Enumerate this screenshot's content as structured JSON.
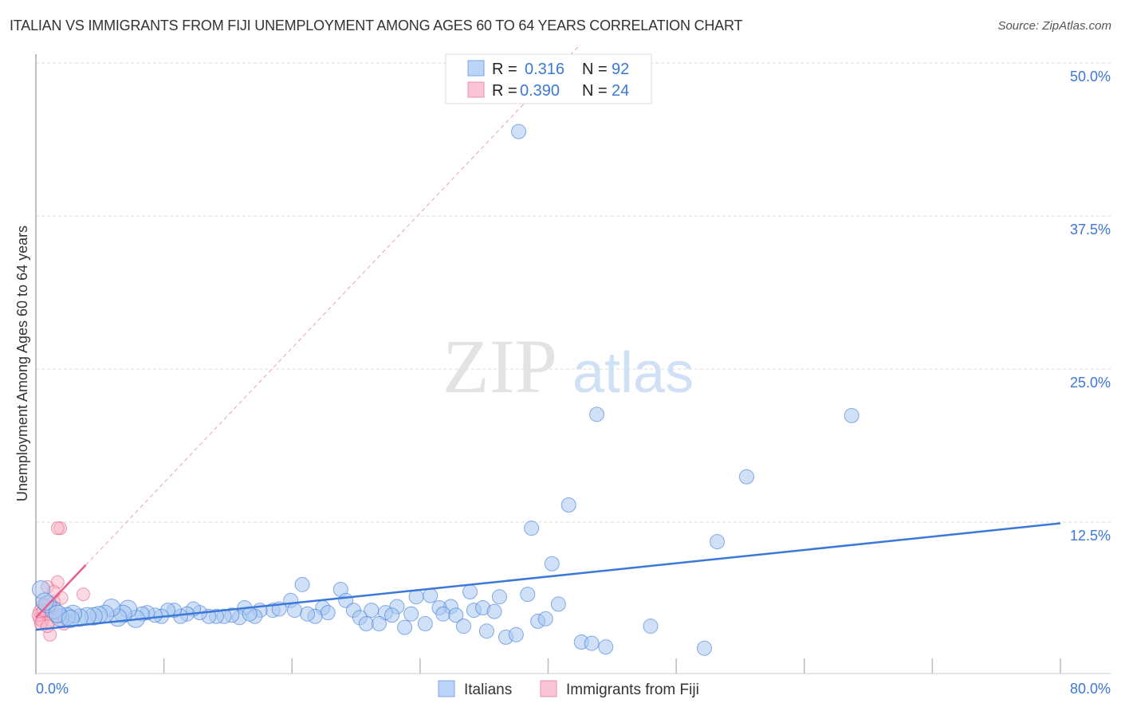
{
  "title": "ITALIAN VS IMMIGRANTS FROM FIJI UNEMPLOYMENT AMONG AGES 60 TO 64 YEARS CORRELATION CHART",
  "source": "Source: ZipAtlas.com",
  "watermark": "ZIPatlas",
  "colors": {
    "blue": "#3b78d8",
    "blue_fill": "#a9c8f0",
    "pink": "#e8608a",
    "pink_fill": "#f7b6c8"
  },
  "chart_data": {
    "type": "scatter",
    "xlabel": "",
    "ylabel": "Unemployment Among Ages 60 to 64 years",
    "xlim": [
      0,
      80
    ],
    "ylim": [
      0,
      50
    ],
    "x_tick_labels": [
      "0.0%",
      "80.0%"
    ],
    "y_ticks": [
      12.5,
      25,
      37.5,
      50
    ],
    "y_tick_labels": [
      "12.5%",
      "25.0%",
      "37.5%",
      "50.0%"
    ],
    "grid": true,
    "legend": {
      "placement": "top-center",
      "entries": [
        {
          "r_label": "R =",
          "r": "0.316",
          "n_label": "N =",
          "n": "92"
        },
        {
          "r_label": "R =",
          "r": "0.390",
          "n_label": "N =",
          "n": "24"
        }
      ]
    },
    "bottom_legend": [
      "Italians",
      "Immigrants from Fiji"
    ],
    "series": [
      {
        "name": "Italians",
        "trend": {
          "x": [
            0,
            80
          ],
          "y": [
            3.7,
            12.4
          ]
        },
        "points": [
          [
            37.7,
            44.4
          ],
          [
            43.8,
            21.3
          ],
          [
            63.7,
            21.2
          ],
          [
            55.5,
            16.2
          ],
          [
            41.6,
            13.9
          ],
          [
            38.7,
            12.0
          ],
          [
            53.2,
            10.9
          ],
          [
            40.3,
            9.1
          ],
          [
            20.8,
            7.4
          ],
          [
            23.8,
            7.0
          ],
          [
            33.9,
            6.8
          ],
          [
            38.4,
            6.6
          ],
          [
            36.2,
            6.4
          ],
          [
            40.8,
            5.8
          ],
          [
            19.9,
            6.1
          ],
          [
            29.7,
            6.4
          ],
          [
            30.8,
            6.5
          ],
          [
            24.2,
            6.1
          ],
          [
            32.4,
            5.6
          ],
          [
            31.5,
            5.5
          ],
          [
            34.2,
            5.3
          ],
          [
            34.9,
            5.5
          ],
          [
            35.8,
            5.2
          ],
          [
            28.2,
            5.6
          ],
          [
            26.2,
            5.3
          ],
          [
            24.8,
            5.3
          ],
          [
            22.4,
            5.5
          ],
          [
            22.8,
            5.1
          ],
          [
            21.8,
            4.8
          ],
          [
            21.2,
            5.0
          ],
          [
            27.3,
            5.1
          ],
          [
            27.8,
            4.9
          ],
          [
            29.3,
            5.0
          ],
          [
            31.8,
            5.0
          ],
          [
            32.8,
            4.9
          ],
          [
            25.3,
            4.7
          ],
          [
            25.8,
            4.2
          ],
          [
            26.8,
            4.2
          ],
          [
            28.8,
            3.9
          ],
          [
            30.4,
            4.2
          ],
          [
            33.4,
            4.0
          ],
          [
            35.2,
            3.6
          ],
          [
            36.7,
            3.1
          ],
          [
            37.5,
            3.3
          ],
          [
            39.2,
            4.4
          ],
          [
            39.8,
            4.6
          ],
          [
            42.6,
            2.7
          ],
          [
            43.4,
            2.6
          ],
          [
            44.5,
            2.3
          ],
          [
            48.0,
            4.0
          ],
          [
            52.2,
            2.2
          ],
          [
            20.2,
            5.3
          ],
          [
            18.5,
            5.3
          ],
          [
            17.5,
            5.3
          ],
          [
            16.3,
            5.5
          ],
          [
            15.9,
            4.7
          ],
          [
            15.3,
            4.9
          ],
          [
            14.7,
            4.8
          ],
          [
            14.1,
            4.8
          ],
          [
            13.5,
            4.8
          ],
          [
            12.8,
            5.1
          ],
          [
            12.3,
            5.4
          ],
          [
            11.8,
            5.0
          ],
          [
            11.3,
            4.8
          ],
          [
            10.8,
            5.3
          ],
          [
            10.3,
            5.3
          ],
          [
            9.8,
            4.8
          ],
          [
            9.3,
            4.9
          ],
          [
            8.7,
            5.1
          ],
          [
            8.3,
            5.0
          ],
          [
            7.8,
            4.6
          ],
          [
            7.2,
            5.4
          ],
          [
            6.8,
            5.0
          ],
          [
            6.4,
            4.7
          ],
          [
            5.9,
            5.5
          ],
          [
            5.4,
            5.0
          ],
          [
            4.9,
            4.9
          ],
          [
            4.5,
            4.8
          ],
          [
            4.0,
            4.8
          ],
          [
            3.4,
            4.7
          ],
          [
            2.9,
            5.0
          ],
          [
            2.4,
            4.8
          ],
          [
            1.9,
            4.7
          ],
          [
            1.4,
            5.3
          ],
          [
            0.9,
            5.8
          ],
          [
            0.4,
            7.0
          ],
          [
            0.7,
            6.0
          ],
          [
            1.7,
            5.0
          ],
          [
            2.7,
            4.6
          ],
          [
            17.1,
            4.8
          ],
          [
            16.7,
            5.0
          ],
          [
            19.0,
            5.4
          ]
        ]
      },
      {
        "name": "Immigrants from Fiji",
        "trend": {
          "x": [
            0,
            3.9
          ],
          "y": [
            4.7,
            9.0
          ]
        },
        "trend_extended": {
          "x": [
            3.9,
            42.5
          ],
          "y": [
            9.0,
            51.5
          ]
        },
        "points": [
          [
            1.9,
            12.0
          ],
          [
            1.7,
            12.0
          ],
          [
            1.7,
            7.6
          ],
          [
            3.7,
            6.6
          ],
          [
            0.9,
            7.2
          ],
          [
            2.0,
            6.3
          ],
          [
            0.6,
            5.8
          ],
          [
            1.4,
            6.0
          ],
          [
            0.3,
            5.2
          ],
          [
            0.8,
            4.9
          ],
          [
            0.3,
            4.6
          ],
          [
            1.1,
            3.3
          ],
          [
            0.5,
            4.4
          ],
          [
            1.1,
            5.2
          ],
          [
            2.2,
            4.2
          ],
          [
            1.6,
            4.8
          ],
          [
            0.2,
            4.9
          ],
          [
            0.7,
            5.7
          ],
          [
            1.4,
            6.8
          ],
          [
            0.4,
            4.2
          ],
          [
            1.2,
            4.5
          ],
          [
            0.9,
            4.0
          ],
          [
            1.3,
            5.5
          ],
          [
            0.6,
            5.3
          ]
        ]
      }
    ]
  }
}
